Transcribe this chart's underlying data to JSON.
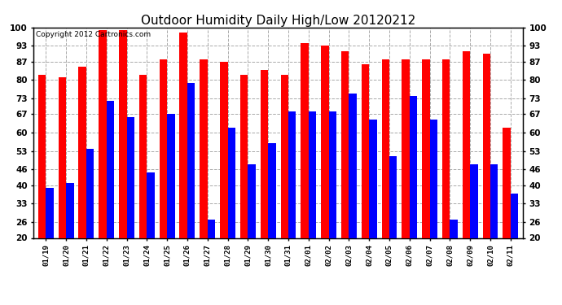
{
  "title": "Outdoor Humidity Daily High/Low 20120212",
  "copyright": "Copyright 2012 Cartronics.com",
  "dates": [
    "01/19",
    "01/20",
    "01/21",
    "01/22",
    "01/23",
    "01/24",
    "01/25",
    "01/26",
    "01/27",
    "01/28",
    "01/29",
    "01/30",
    "01/31",
    "02/01",
    "02/02",
    "02/03",
    "02/04",
    "02/05",
    "02/06",
    "02/07",
    "02/08",
    "02/09",
    "02/10",
    "02/11"
  ],
  "high": [
    82,
    81,
    85,
    99,
    99,
    82,
    88,
    98,
    88,
    87,
    82,
    84,
    82,
    94,
    93,
    91,
    86,
    88,
    88,
    88,
    88,
    91,
    90,
    62
  ],
  "low": [
    39,
    41,
    54,
    72,
    66,
    45,
    67,
    79,
    27,
    62,
    48,
    56,
    68,
    68,
    68,
    75,
    65,
    51,
    74,
    65,
    27,
    48,
    48,
    37
  ],
  "bar_width": 0.38,
  "ylim": [
    20,
    100
  ],
  "yticks": [
    20,
    26,
    33,
    40,
    46,
    53,
    60,
    67,
    73,
    80,
    87,
    93,
    100
  ],
  "high_color": "#ff0000",
  "low_color": "#0000ff",
  "bg_color": "#ffffff",
  "grid_color": "#aaaaaa",
  "title_fontsize": 11,
  "copyright_fontsize": 6.5
}
